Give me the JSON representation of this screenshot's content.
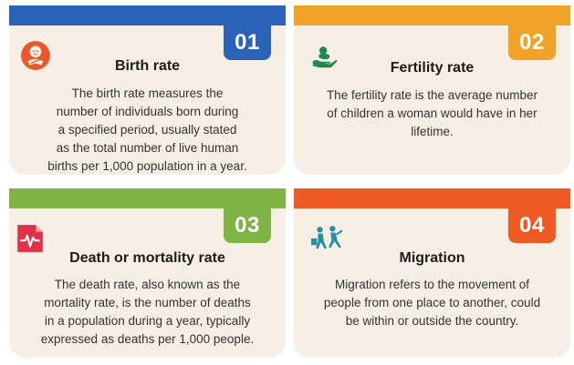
{
  "cards": [
    {
      "number": "01",
      "title": "Birth rate",
      "lines": [
        "The birth rate measures the",
        "number of individuals born during",
        "a specified period, usually stated",
        "as the total number of live human",
        "births per 1,000 population in a year."
      ],
      "color": "#2a63b7",
      "icon": "baby-icon"
    },
    {
      "number": "02",
      "title": "Fertility rate",
      "lines": [
        "The fertility rate is the average number",
        "of children a woman would have in her",
        "lifetime."
      ],
      "color": "#f0a328",
      "icon": "baby-in-hand-icon"
    },
    {
      "number": "03",
      "title": "Death or mortality rate",
      "lines": [
        "The death rate, also known as the",
        "mortality rate, is the number of deaths",
        "in a population during a year, typically",
        "expressed as deaths per 1,000 people."
      ],
      "color": "#7db444",
      "icon": "heartbeat-icon"
    },
    {
      "number": "04",
      "title": "Migration",
      "lines": [
        "Migration refers to the movement of",
        "people from one place to another, could",
        "be within or outside the country."
      ],
      "color": "#ee5a24",
      "icon": "travelers-icon"
    }
  ]
}
